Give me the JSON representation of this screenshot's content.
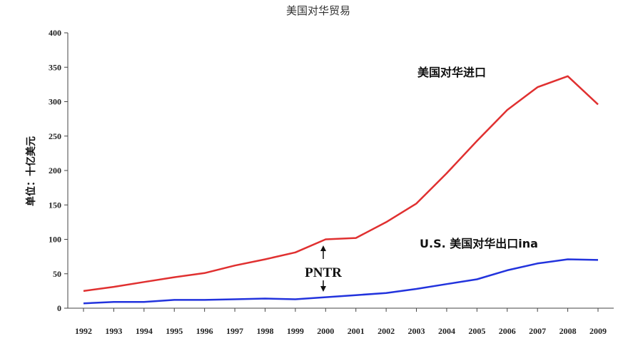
{
  "chart_data": {
    "type": "line",
    "title": "美国对华贸易",
    "ylabel": "单位：十亿美元",
    "xlabel": "",
    "ylim": [
      0,
      400
    ],
    "yticks": [
      0,
      50,
      100,
      150,
      200,
      250,
      300,
      350,
      400
    ],
    "categories": [
      "1992",
      "1993",
      "1994",
      "1995",
      "1996",
      "1997",
      "1998",
      "1999",
      "2000",
      "2001",
      "2002",
      "2003",
      "2004",
      "2005",
      "2006",
      "2007",
      "2008",
      "2009"
    ],
    "grid": false,
    "series": [
      {
        "name": "美国对华进口",
        "color": "#e03030",
        "values": [
          25,
          31,
          38,
          45,
          51,
          62,
          71,
          81,
          100,
          102,
          125,
          152,
          196,
          243,
          288,
          321,
          337,
          296
        ]
      },
      {
        "name": "U.S. 美国对华出口ina",
        "color": "#2233dd",
        "values": [
          7,
          9,
          9,
          12,
          12,
          13,
          14,
          13,
          16,
          19,
          22,
          28,
          35,
          42,
          55,
          65,
          71,
          70
        ]
      }
    ],
    "annotations": [
      {
        "text": "PNTR",
        "x": "2000"
      }
    ]
  }
}
